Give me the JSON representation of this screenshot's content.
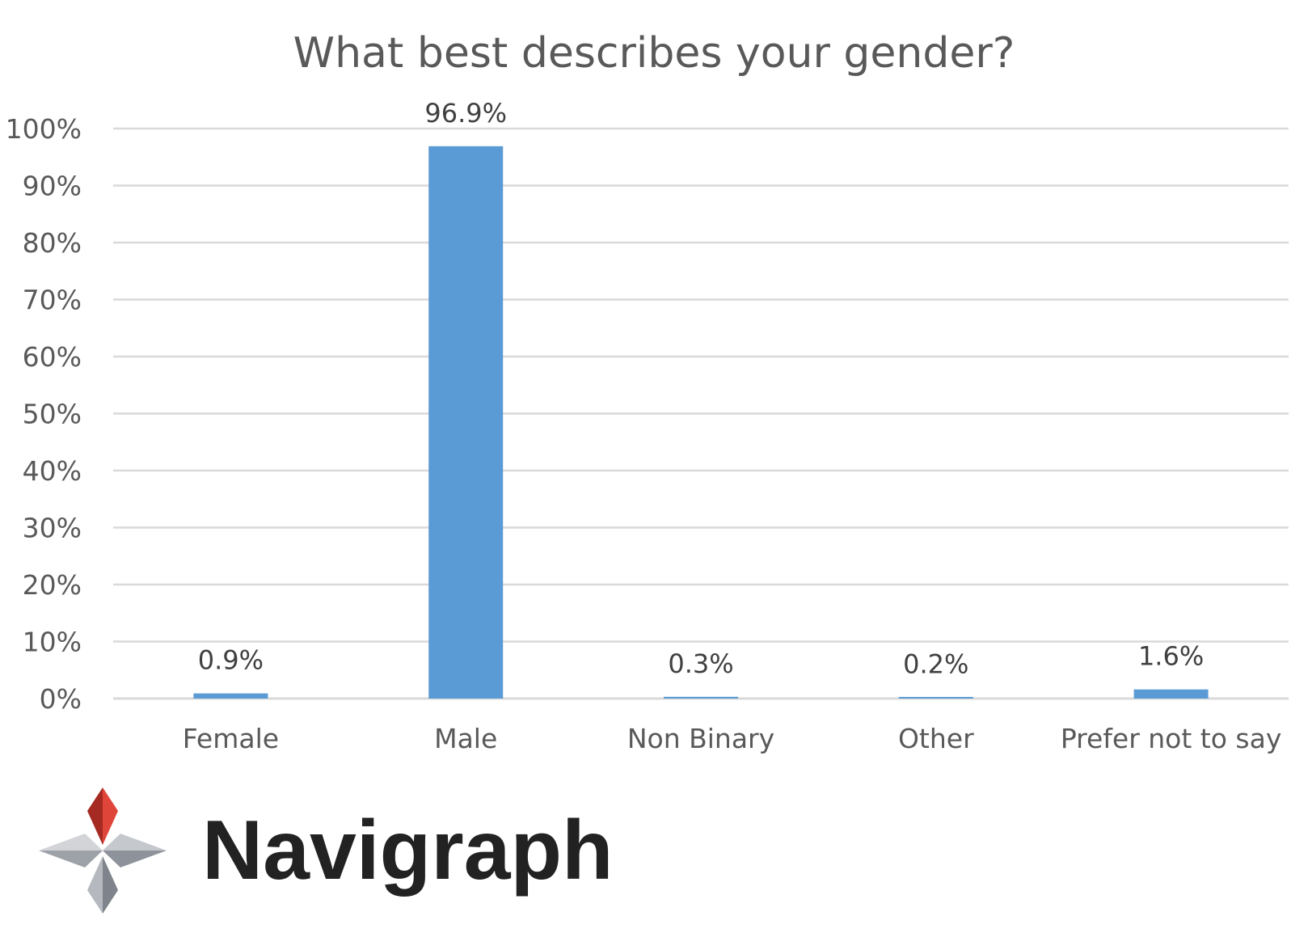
{
  "chart_data": {
    "type": "bar",
    "title": "What best describes your gender?",
    "categories": [
      "Female",
      "Male",
      "Non Binary",
      "Other",
      "Prefer not to say"
    ],
    "values": [
      0.9,
      96.9,
      0.3,
      0.2,
      1.6
    ],
    "data_labels": [
      "0.9%",
      "96.9%",
      "0.3%",
      "0.2%",
      "1.6%"
    ],
    "xlabel": "",
    "ylabel": "",
    "ylim": [
      0,
      100
    ],
    "y_ticks": [
      0,
      10,
      20,
      30,
      40,
      50,
      60,
      70,
      80,
      90,
      100
    ],
    "y_tick_labels": [
      "0%",
      "10%",
      "20%",
      "30%",
      "40%",
      "50%",
      "60%",
      "70%",
      "80%",
      "90%",
      "100%"
    ],
    "grid": true,
    "legend": "none",
    "bar_color": "#5B9BD5",
    "grid_color": "#D9D9D9"
  },
  "logo": {
    "name": "Navigraph",
    "icon": "compass-star-icon",
    "accent_color": "#D9342B"
  }
}
